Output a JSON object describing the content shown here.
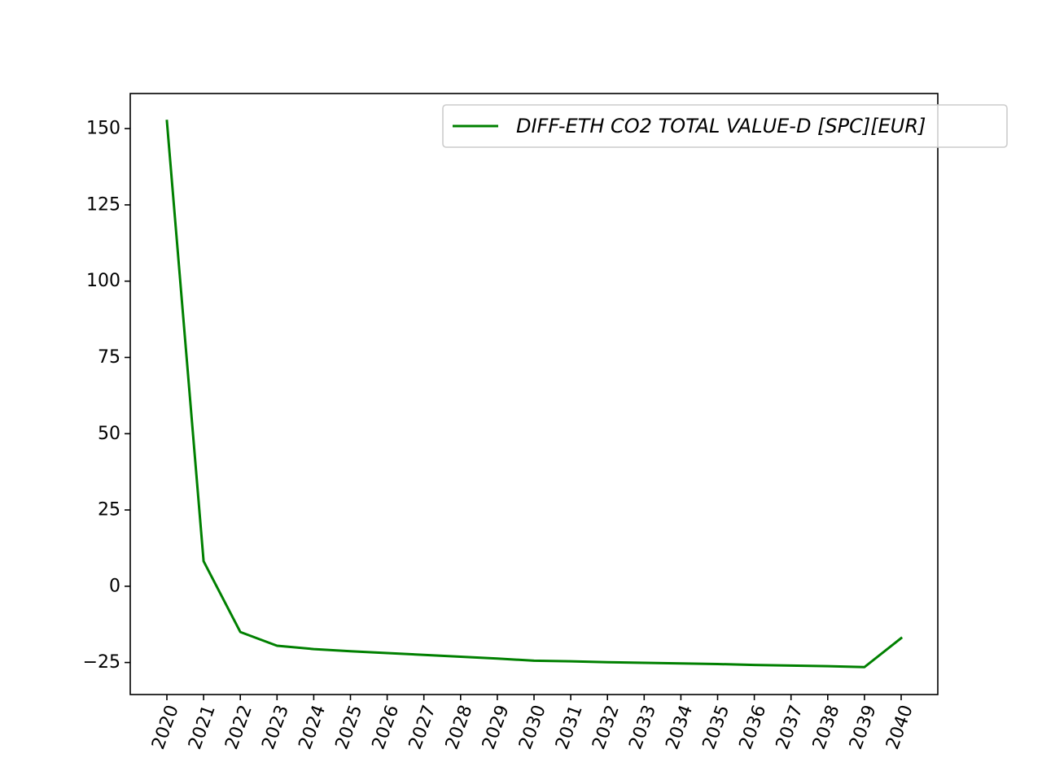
{
  "chart_data": {
    "type": "line",
    "title": "",
    "xlabel": "",
    "ylabel": "",
    "categories": [
      "2020",
      "2021",
      "2022",
      "2023",
      "2024",
      "2025",
      "2026",
      "2027",
      "2028",
      "2029",
      "2030",
      "2031",
      "2032",
      "2033",
      "2034",
      "2035",
      "2036",
      "2037",
      "2038",
      "2039",
      "2040"
    ],
    "series": [
      {
        "name": "DIFF-ETH CO2 TOTAL VALUE-D [SPC][EUR]",
        "color": "#008000",
        "values": [
          152.5,
          8.2,
          -15.0,
          -19.5,
          -20.6,
          -21.3,
          -21.9,
          -22.5,
          -23.1,
          -23.7,
          -24.4,
          -24.6,
          -24.9,
          -25.1,
          -25.3,
          -25.5,
          -25.8,
          -26.0,
          -26.2,
          -26.5,
          -17.0
        ]
      }
    ],
    "ylim": [
      -35.5,
      161.5
    ],
    "yticks": [
      -25,
      0,
      25,
      50,
      75,
      100,
      125,
      150
    ],
    "ytick_labels": [
      "−25",
      "0",
      "25",
      "50",
      "75",
      "100",
      "125",
      "150"
    ],
    "legend_position": "top-right",
    "grid": false
  }
}
